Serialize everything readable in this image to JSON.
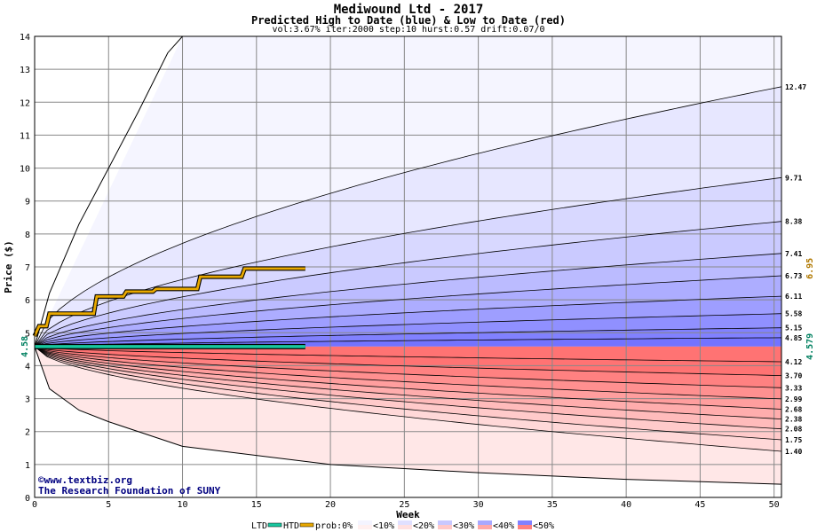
{
  "chart_data": {
    "type": "area",
    "title": "Mediwound Ltd - 2017",
    "subtitle": "Predicted High to Date (blue) &  Low to Date (red)",
    "params": "vol:3.67% iter:2000 step:10 hurst:0.57 drift:0.07/0",
    "xlabel": "Week",
    "ylabel": "Price ($)",
    "xlim": [
      0,
      50.5
    ],
    "ylim": [
      0,
      14
    ],
    "x_ticks": [
      0,
      5,
      10,
      15,
      20,
      25,
      30,
      35,
      40,
      45,
      50
    ],
    "y_ticks": [
      0,
      1,
      2,
      3,
      4,
      5,
      6,
      7,
      8,
      9,
      10,
      11,
      12,
      13,
      14
    ],
    "grid": true,
    "start_price": 4.58,
    "start_label": "4.58",
    "high_quantiles_end": [
      12.47,
      9.71,
      8.38,
      7.41,
      6.73,
      6.11,
      5.58,
      5.15,
      4.85
    ],
    "high_labels": [
      "12.47",
      "9.71",
      "8.38",
      "7.41",
      "6.73",
      "6.11",
      "5.58",
      "5.15",
      "4.85"
    ],
    "low_quantiles_end": [
      4.12,
      3.7,
      3.33,
      2.99,
      2.68,
      2.38,
      2.08,
      1.75,
      1.4
    ],
    "low_labels": [
      "4.12",
      "3.70",
      "3.33",
      "2.99",
      "2.68",
      "2.38",
      "2.08",
      "1.75",
      "1.40"
    ],
    "extreme_high_line": [
      [
        0,
        4.58
      ],
      [
        1,
        6.2
      ],
      [
        3,
        8.3
      ],
      [
        5,
        10.0
      ],
      [
        7,
        11.7
      ],
      [
        9,
        13.5
      ],
      [
        10,
        14.0
      ]
    ],
    "extreme_low_line": [
      [
        0,
        4.58
      ],
      [
        1,
        3.3
      ],
      [
        3,
        2.65
      ],
      [
        5,
        2.3
      ],
      [
        10,
        1.55
      ],
      [
        20,
        1.0
      ],
      [
        30,
        0.75
      ],
      [
        40,
        0.55
      ],
      [
        50.5,
        0.4
      ]
    ],
    "htd_series": [
      [
        0,
        4.9
      ],
      [
        0.3,
        5.2
      ],
      [
        0.8,
        5.2
      ],
      [
        1,
        5.58
      ],
      [
        4,
        5.58
      ],
      [
        4.2,
        6.1
      ],
      [
        6,
        6.1
      ],
      [
        6.2,
        6.25
      ],
      [
        8,
        6.25
      ],
      [
        8.2,
        6.33
      ],
      [
        11,
        6.33
      ],
      [
        11.2,
        6.7
      ],
      [
        14,
        6.7
      ],
      [
        14.2,
        6.95
      ],
      [
        18.3,
        6.95
      ]
    ],
    "ltd_series": [
      [
        0,
        4.58
      ],
      [
        18.3,
        4.58
      ]
    ],
    "right_labels": {
      "htd_current": "6.95",
      "ltd_current": "4.579"
    },
    "colors": {
      "htd": "#e8a800",
      "ltd": "#18c8a0",
      "high_band": "#7373ff",
      "low_band": "#ff7373"
    },
    "watermark": [
      "www.textbiz.org",
      "The Research Foundation of SUNY"
    ],
    "legend": [
      "LTD",
      "HTD",
      "prob:0%",
      "<10%",
      "<20%",
      "<30%",
      "<40%",
      "<50%"
    ],
    "legend_placement": "bottom"
  }
}
